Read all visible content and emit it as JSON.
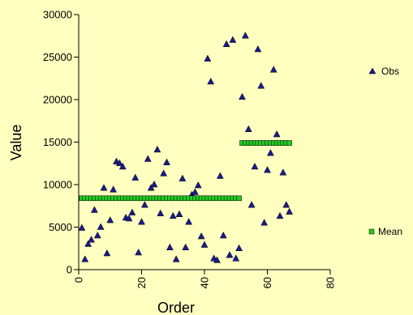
{
  "chart_data": {
    "type": "scatter",
    "xlabel": "Order",
    "ylabel": "Value",
    "xlim": [
      0,
      80
    ],
    "ylim": [
      0,
      30000
    ],
    "xticks": [
      0,
      20,
      40,
      60,
      80
    ],
    "yticks": [
      0,
      5000,
      10000,
      15000,
      20000,
      25000,
      30000
    ],
    "xtick_labels": [
      "0",
      "20",
      "40",
      "60",
      "80"
    ],
    "ytick_labels": [
      "0",
      "5000",
      "10000",
      "15000",
      "20000",
      "25000",
      "30000"
    ],
    "grid": false,
    "legend": {
      "placement": "right",
      "entries": [
        {
          "label": "Obs",
          "marker": "triangle",
          "color": "#1a1a8c"
        },
        {
          "label": "Mean",
          "marker": "square",
          "color": "#22cc22"
        }
      ]
    },
    "series": [
      {
        "name": "Obs",
        "marker": "triangle",
        "color": "#1a1a8c",
        "points": [
          [
            1,
            4900
          ],
          [
            2,
            1200
          ],
          [
            3,
            3000
          ],
          [
            4,
            3500
          ],
          [
            5,
            7000
          ],
          [
            6,
            4000
          ],
          [
            7,
            5000
          ],
          [
            8,
            9600
          ],
          [
            9,
            1900
          ],
          [
            10,
            5800
          ],
          [
            11,
            9400
          ],
          [
            12,
            12700
          ],
          [
            13,
            12500
          ],
          [
            14,
            12100
          ],
          [
            15,
            6100
          ],
          [
            16,
            6000
          ],
          [
            17,
            6700
          ],
          [
            18,
            10800
          ],
          [
            19,
            2000
          ],
          [
            20,
            5600
          ],
          [
            21,
            7600
          ],
          [
            22,
            13000
          ],
          [
            23,
            9600
          ],
          [
            24,
            10000
          ],
          [
            25,
            14100
          ],
          [
            26,
            6600
          ],
          [
            27,
            11300
          ],
          [
            28,
            12600
          ],
          [
            29,
            2600
          ],
          [
            30,
            6300
          ],
          [
            31,
            1200
          ],
          [
            32,
            6500
          ],
          [
            33,
            10700
          ],
          [
            34,
            2600
          ],
          [
            35,
            5600
          ],
          [
            36,
            8800
          ],
          [
            37,
            9100
          ],
          [
            38,
            9900
          ],
          [
            39,
            3900
          ],
          [
            40,
            2900
          ],
          [
            41,
            24800
          ],
          [
            42,
            22100
          ],
          [
            43,
            1300
          ],
          [
            44,
            1100
          ],
          [
            45,
            11000
          ],
          [
            46,
            4000
          ],
          [
            47,
            26500
          ],
          [
            48,
            1700
          ],
          [
            49,
            27000
          ],
          [
            50,
            1300
          ],
          [
            51,
            2500
          ],
          [
            52,
            20300
          ],
          [
            53,
            27500
          ],
          [
            54,
            16500
          ],
          [
            55,
            7600
          ],
          [
            56,
            12100
          ],
          [
            57,
            25900
          ],
          [
            58,
            21600
          ],
          [
            59,
            5500
          ],
          [
            60,
            11700
          ],
          [
            61,
            13700
          ],
          [
            62,
            23500
          ],
          [
            63,
            15900
          ],
          [
            64,
            6300
          ],
          [
            65,
            11400
          ],
          [
            66,
            7600
          ],
          [
            67,
            6800
          ]
        ]
      },
      {
        "name": "Mean",
        "marker": "square",
        "color": "#22cc22",
        "segments": [
          {
            "x_start": 1,
            "x_end": 51,
            "y": 8400
          },
          {
            "x_start": 52,
            "x_end": 67,
            "y": 14900
          }
        ]
      }
    ]
  }
}
